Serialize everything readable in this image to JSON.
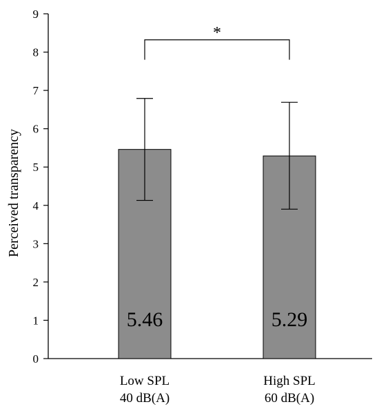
{
  "chart_data": {
    "type": "bar",
    "title": "",
    "ylabel": "Perceived transparency",
    "xlabel": "",
    "ylim": [
      0,
      9
    ],
    "yticks": [
      "0",
      "1",
      "2",
      "3",
      "4",
      "5",
      "6",
      "7",
      "8",
      "9"
    ],
    "categories": [
      {
        "line1": "Low SPL",
        "line2": "40 dB(A)"
      },
      {
        "line1": "High SPL",
        "line2": "60 dB(A)"
      }
    ],
    "values": [
      5.46,
      5.29
    ],
    "value_labels": [
      "5.46",
      "5.29"
    ],
    "error_low": [
      4.13,
      3.9
    ],
    "error_high": [
      6.79,
      6.69
    ],
    "bar_color": "#8c8c8c",
    "significance": {
      "between": [
        0,
        1
      ],
      "label": "*"
    }
  }
}
